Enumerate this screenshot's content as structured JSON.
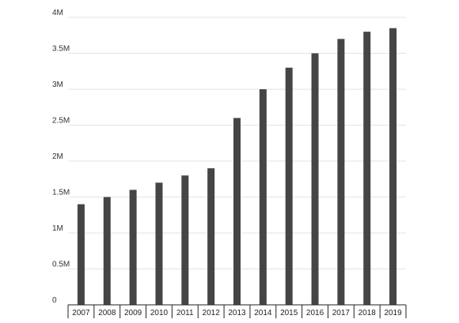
{
  "chart_data": {
    "type": "bar",
    "categories": [
      "2007",
      "2008",
      "2009",
      "2010",
      "2011",
      "2012",
      "2013",
      "2014",
      "2015",
      "2016",
      "2017",
      "2018",
      "2019"
    ],
    "values": [
      1400000,
      1500000,
      1600000,
      1700000,
      1800000,
      1900000,
      2600000,
      3000000,
      3300000,
      3500000,
      3700000,
      3800000,
      3850000
    ],
    "ylim": [
      0,
      4000000
    ],
    "yticks": [
      0,
      500000,
      1000000,
      1500000,
      2000000,
      2500000,
      3000000,
      3500000,
      4000000
    ],
    "ytick_labels": [
      "0",
      "0.5M",
      "1M",
      "1.5M",
      "2M",
      "2.5M",
      "3M",
      "3.5M",
      "4M"
    ],
    "title": "",
    "xlabel": "",
    "ylabel": "",
    "grid": true,
    "bar_color": "#454545",
    "grid_color": "#e3e3e3"
  }
}
